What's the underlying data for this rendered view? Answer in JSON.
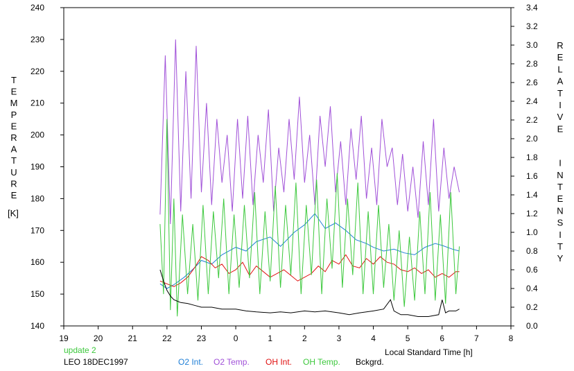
{
  "chart_data": {
    "type": "line",
    "xlabel": "Local Standard Time [h]",
    "ylabel_left": "TEMPERATURE",
    "ylabel_left_unit": "[K]",
    "ylabel_right": "RELATIVE INTENSITY",
    "x_tick_labels": [
      "19",
      "20",
      "21",
      "22",
      "23",
      "0",
      "1",
      "2",
      "3",
      "4",
      "5",
      "6",
      "7",
      "8"
    ],
    "xlim": [
      19,
      32
    ],
    "ylim_left": [
      140,
      240
    ],
    "y_left_ticks": [
      140,
      150,
      160,
      170,
      180,
      190,
      200,
      210,
      220,
      230,
      240
    ],
    "ylim_right": [
      0.0,
      3.4
    ],
    "y_right_ticks": [
      "0.0",
      "0.2",
      "0.4",
      "0.6",
      "0.8",
      "1.0",
      "1.2",
      "1.4",
      "1.6",
      "1.8",
      "2.0",
      "2.2",
      "2.4",
      "2.6",
      "2.8",
      "3.0",
      "3.2",
      "3.4"
    ],
    "grid": false,
    "legend": "bottom",
    "update_label": "update 2",
    "station_label": "LEO 18DEC1997",
    "series": [
      {
        "name": "O2 Int.",
        "axis": "right",
        "color": "#1f7fd6",
        "x": [
          21.8,
          22.0,
          22.2,
          22.5,
          22.8,
          23.0,
          23.3,
          23.6,
          24.0,
          24.3,
          24.6,
          25.0,
          25.3,
          25.7,
          26.0,
          26.3,
          26.6,
          26.9,
          27.2,
          27.5,
          27.8,
          28.0,
          28.3,
          28.6,
          28.9,
          29.2,
          29.5,
          29.8,
          30.0,
          30.3,
          30.5
        ],
        "y": [
          0.45,
          0.4,
          0.44,
          0.52,
          0.62,
          0.7,
          0.66,
          0.76,
          0.84,
          0.8,
          0.9,
          0.95,
          0.85,
          1.0,
          1.08,
          1.2,
          1.04,
          1.1,
          1.02,
          0.92,
          0.88,
          0.84,
          0.8,
          0.82,
          0.78,
          0.76,
          0.84,
          0.88,
          0.86,
          0.82,
          0.8
        ]
      },
      {
        "name": "O2 Temp.",
        "axis": "left",
        "color": "#a050d8",
        "x": [
          21.8,
          21.95,
          22.1,
          22.25,
          22.4,
          22.55,
          22.7,
          22.85,
          23.0,
          23.15,
          23.3,
          23.45,
          23.6,
          23.75,
          23.9,
          24.05,
          24.2,
          24.35,
          24.5,
          24.65,
          24.8,
          24.95,
          25.1,
          25.25,
          25.4,
          25.55,
          25.7,
          25.85,
          26.0,
          26.15,
          26.3,
          26.45,
          26.6,
          26.75,
          26.9,
          27.05,
          27.2,
          27.35,
          27.5,
          27.65,
          27.8,
          27.95,
          28.1,
          28.25,
          28.4,
          28.55,
          28.7,
          28.85,
          29.0,
          29.15,
          29.3,
          29.45,
          29.6,
          29.75,
          29.9,
          30.05,
          30.2,
          30.35,
          30.5
        ],
        "y": [
          175,
          225,
          172,
          230,
          176,
          220,
          180,
          228,
          182,
          210,
          178,
          205,
          185,
          200,
          176,
          205,
          180,
          206,
          178,
          200,
          185,
          208,
          176,
          196,
          182,
          205,
          186,
          212,
          185,
          200,
          178,
          206,
          190,
          209,
          182,
          198,
          178,
          202,
          186,
          206,
          180,
          196,
          178,
          205,
          190,
          196,
          178,
          194,
          176,
          190,
          174,
          198,
          178,
          205,
          176,
          196,
          180,
          190,
          182
        ]
      },
      {
        "name": "OH Int.",
        "axis": "right",
        "color": "#e01010",
        "x": [
          21.8,
          22.0,
          22.2,
          22.4,
          22.6,
          22.8,
          23.0,
          23.2,
          23.4,
          23.6,
          23.8,
          24.0,
          24.2,
          24.4,
          24.6,
          24.8,
          25.0,
          25.2,
          25.4,
          25.6,
          25.8,
          26.0,
          26.2,
          26.4,
          26.6,
          26.8,
          27.0,
          27.2,
          27.4,
          27.6,
          27.8,
          28.0,
          28.2,
          28.4,
          28.6,
          28.8,
          29.0,
          29.2,
          29.4,
          29.6,
          29.8,
          30.0,
          30.2,
          30.4,
          30.5
        ],
        "y": [
          0.48,
          0.45,
          0.42,
          0.46,
          0.52,
          0.62,
          0.74,
          0.7,
          0.62,
          0.66,
          0.56,
          0.6,
          0.68,
          0.54,
          0.64,
          0.58,
          0.52,
          0.56,
          0.6,
          0.54,
          0.48,
          0.52,
          0.56,
          0.64,
          0.58,
          0.7,
          0.66,
          0.76,
          0.64,
          0.62,
          0.72,
          0.66,
          0.74,
          0.68,
          0.66,
          0.6,
          0.58,
          0.62,
          0.56,
          0.6,
          0.52,
          0.56,
          0.52,
          0.58,
          0.58
        ]
      },
      {
        "name": "OH Temp.",
        "axis": "left",
        "color": "#3cc83c",
        "x": [
          21.8,
          21.9,
          22.0,
          22.1,
          22.2,
          22.3,
          22.45,
          22.6,
          22.75,
          22.9,
          23.05,
          23.2,
          23.35,
          23.5,
          23.65,
          23.8,
          23.95,
          24.1,
          24.25,
          24.4,
          24.55,
          24.7,
          24.85,
          25.0,
          25.15,
          25.3,
          25.45,
          25.6,
          25.75,
          25.9,
          26.05,
          26.2,
          26.35,
          26.5,
          26.65,
          26.8,
          26.95,
          27.1,
          27.25,
          27.4,
          27.55,
          27.7,
          27.85,
          28.0,
          28.15,
          28.3,
          28.45,
          28.6,
          28.75,
          28.9,
          29.05,
          29.2,
          29.35,
          29.5,
          29.65,
          29.8,
          29.95,
          30.1,
          30.25,
          30.4,
          30.5
        ],
        "y": [
          172,
          150,
          205,
          145,
          180,
          143,
          175,
          150,
          172,
          148,
          178,
          150,
          176,
          155,
          180,
          150,
          175,
          152,
          178,
          155,
          182,
          150,
          176,
          154,
          184,
          152,
          178,
          156,
          185,
          150,
          178,
          156,
          186,
          150,
          180,
          158,
          188,
          152,
          180,
          156,
          185,
          150,
          176,
          150,
          178,
          152,
          172,
          148,
          170,
          146,
          168,
          148,
          176,
          150,
          182,
          148,
          175,
          147,
          182,
          150,
          165
        ]
      },
      {
        "name": "Bckgrd.",
        "axis": "right",
        "color": "#000000",
        "x": [
          21.8,
          21.9,
          22.0,
          22.1,
          22.2,
          22.4,
          22.6,
          22.8,
          23.0,
          23.3,
          23.6,
          24.0,
          24.3,
          24.6,
          25.0,
          25.3,
          25.6,
          26.0,
          26.3,
          26.6,
          27.0,
          27.3,
          27.6,
          28.0,
          28.3,
          28.5,
          28.6,
          28.8,
          29.0,
          29.3,
          29.6,
          29.9,
          30.0,
          30.1,
          30.2,
          30.4,
          30.5
        ],
        "y": [
          0.6,
          0.48,
          0.38,
          0.32,
          0.28,
          0.25,
          0.24,
          0.22,
          0.2,
          0.2,
          0.18,
          0.18,
          0.16,
          0.15,
          0.14,
          0.15,
          0.14,
          0.16,
          0.15,
          0.16,
          0.14,
          0.12,
          0.14,
          0.16,
          0.18,
          0.28,
          0.16,
          0.12,
          0.12,
          0.1,
          0.1,
          0.12,
          0.28,
          0.14,
          0.16,
          0.16,
          0.18
        ]
      }
    ]
  }
}
